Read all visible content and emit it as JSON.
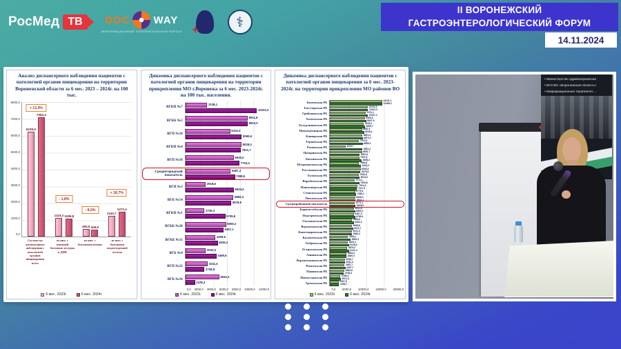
{
  "header": {
    "logos": {
      "rosmed_text": "РосМед",
      "rosmed_tv": "ТВ",
      "docway_doc": "DOC",
      "docway_way": "WAY",
      "docway_caption": "ИНФОРМАЦИОННЫЙ ТЕРАПЕВТИЧЕСКИЙ ПОРТАЛ",
      "emblem_glyph": "⚕",
      "hand_cross": "+"
    },
    "banner": {
      "line1": "II ВОРОНЕЖСКИЙ",
      "line2": "ГАСТРОЭНТЕРОЛОГИЧЕСКИЙ ФОРУМ",
      "bg": "#3c34cd",
      "date": "14.11.2024"
    }
  },
  "video": {
    "banner_lines": [
      "• Министерство здравоохранения",
      "• БУЗ ВО «Воронежская область»",
      "• Информационный терапевтич…"
    ]
  },
  "chart_data": [
    {
      "type": "bar",
      "title": "Анализ диспансерного наблюдения пациентов с  патологией органов пищеварения на территории Воронежской области за 6 мес. 2023 – 2024г. на 100 тыс.",
      "categories": [
        "Состоит на диспансерном наблюдении с патологией органов пищеварения всего",
        "из них: с язвенной болезнью желудка и ДПК",
        "из них: с болезнями печени",
        "из них: с болезнями поджелудочной железы"
      ],
      "series": [
        {
          "name": "6 мес. 2023г.",
          "color": "#f2aec2",
          "values": [
            6228.6,
            1119.2,
            465.9,
            1240.7
          ]
        },
        {
          "name": "6 мес. 2024г.",
          "color": "#cd5b77",
          "values": [
            7062.4,
            1099.8,
            428.8,
            1472.4
          ]
        }
      ],
      "annotations": [
        "+ 13,4%",
        "- 1,8%",
        "- 8,0%",
        "+ 18,7%"
      ],
      "ylim": [
        0,
        8000
      ],
      "yticks": [
        "8000,0",
        "7000,0",
        "6000,0",
        "5000,0",
        "4000,0",
        "3000,0",
        "2000,0",
        "1000,0",
        "0,0"
      ],
      "grid": true,
      "legend_position": "bottom"
    },
    {
      "type": "bar",
      "orientation": "horizontal",
      "title": "Динамика диспансерного наблюдения пациентов с  патологией органов пищеварения на территории прикрепления МО г.Воронежа за 6 мес. 2023-2024г. на 100 тыс. населения.",
      "categories": [
        "ВГКП №7",
        "ВГКБ №5",
        "ВГП №10",
        "ВГКП №4",
        "ВГП №18",
        "Среднегородской показатель",
        "ВГП №3",
        "ВГБ №14",
        "ВГКП №1",
        "ВГКБ №20",
        "ВГКБ №11",
        "ВГБ №4",
        "ВГП №22",
        "ВГБ №16"
      ],
      "series": [
        {
          "name": "6 мес. 2023г.",
          "color": "#c75fc3",
          "values": [
            3138.1,
            8911.8,
            6419.2,
            8028.0,
            6930.0,
            6487.3,
            2918.6,
            6884.3,
            2735.3,
            5806.3,
            4309.6,
            2932.3,
            3211.6,
            4834.3
          ]
        },
        {
          "name": "6 мес. 2024г.",
          "color": "#8b188b",
          "values": [
            10223.3,
            8910.0,
            8065.6,
            7921.7,
            7754.3,
            7088.5,
            6933.6,
            6578.9,
            5705.8,
            5457.1,
            4626.2,
            4459.6,
            2738.9,
            1378.3
          ]
        }
      ],
      "highlight": "Среднегородской показатель",
      "xlim": [
        0,
        12000
      ],
      "xticks": [
        "0,0",
        "2000,0",
        "4000,0",
        "6000,0",
        "8000,0",
        "10000,0",
        "12000,0"
      ],
      "grid": true,
      "legend_position": "bottom"
    },
    {
      "type": "bar",
      "orientation": "horizontal",
      "title": "Динамика диспансерного наблюдения пациентов с  патологией органов пищеварения за 6 мес. 2023-2024г.  на территории прикрепления МО районов ВО",
      "categories": [
        "Каменская РБ",
        "Богучарская РБ",
        "Грибановская РБ",
        "Хохольская РБ",
        "Бутурлиновская РБ",
        "Нижнедевицкая РБ",
        "Каширская РБ",
        "Терновская РБ",
        "Рамонская РБ",
        "Поворинская РБ",
        "Лискинская РБ",
        "Петропавловская РБ",
        "Россошанская РБ",
        "Таловская РБ",
        "Воробьевская РБ",
        "Новохоперская РБ",
        "Семилукская РБ",
        "Павловская РБ",
        "Среднерайонный показатель",
        "Борисоглебская РБ",
        "Подгоренская РБ",
        "Ольховатская РБ",
        "Верхнехавская РБ",
        "Кантемировская РБ",
        "Калачеевская РБ",
        "Бобровская РБ",
        "Острогожская РБ",
        "Аннинская РБ",
        "Верхнемамонская РБ",
        "Репьевская РБ",
        "Панинская РБ",
        "Новоусманская РБ",
        "Эртильская РБ"
      ],
      "series": [
        {
          "name": "6 мес. 2023г.",
          "color": "#8fc06a",
          "values": [
            14131.1,
            10202.6,
            9731.1,
            9460.5,
            9182.4,
            8657.5,
            8801.3,
            7879.5,
            4233.7,
            8657.7,
            7907.9,
            7884.6,
            8303.3,
            7843.3,
            6711.1,
            7514.4,
            6779.6,
            6845.2,
            6771.1,
            6511.8,
            6467.3,
            5984.6,
            5968.8,
            5921.4,
            4893.1,
            4823.4,
            4676.2,
            4465.4,
            4036.7,
            3957.7,
            3864.8,
            2788.4,
            2357.8
          ]
        },
        {
          "name": "6 мес. 2024г.",
          "color": "#2f7d36",
          "values": [
            14188.2,
            10321.3,
            10237.2,
            9807.9,
            9495.7,
            9228.4,
            8872.3,
            8859.2,
            8811.4,
            8067.3,
            8633.2,
            8432.2,
            8270.8,
            8013.2,
            7950.8,
            7317.5,
            7086.1,
            6941.1,
            6948.9,
            6800.1,
            6789.3,
            6462.2,
            6219.7,
            5983.2,
            5583.3,
            5126.6,
            5131.3,
            4450.0,
            4041.3,
            4157.7,
            3754.4,
            2921.3,
            2456.7
          ]
        }
      ],
      "highlight": "Среднерайонный показатель",
      "xlim": [
        0,
        20000
      ],
      "xticks": [
        "0,0",
        "5000,0",
        "10000,0",
        "15000,0",
        "20000,0"
      ],
      "grid": true,
      "legend_position": "bottom"
    }
  ]
}
